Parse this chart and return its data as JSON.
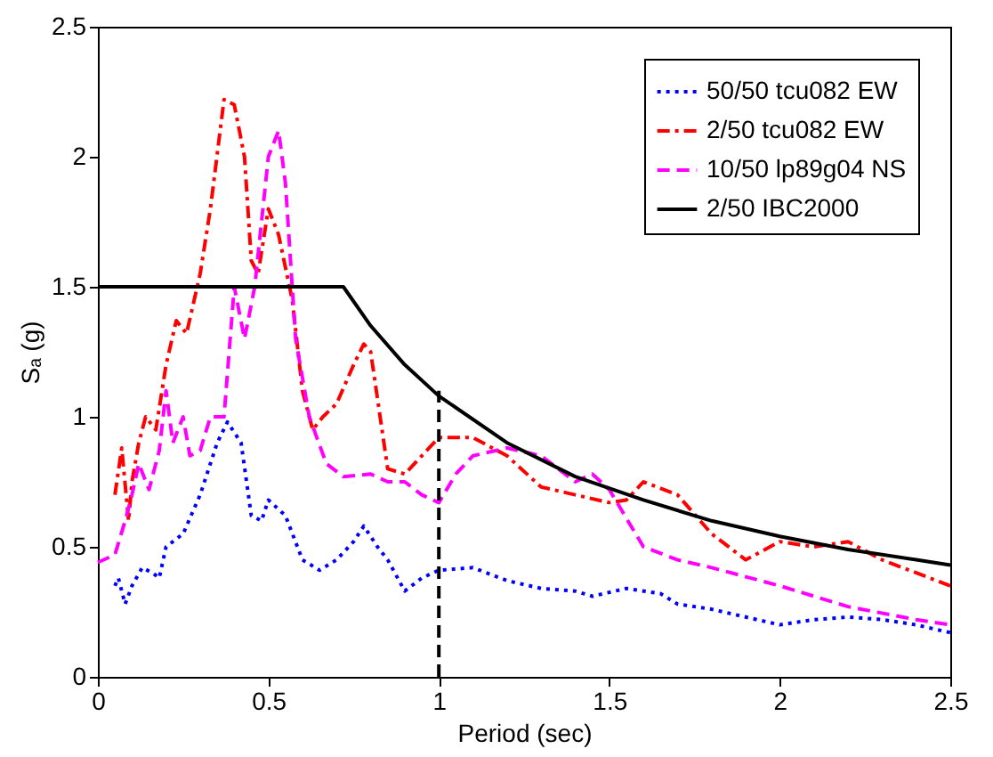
{
  "chart_data": {
    "type": "line",
    "xlabel": "Period (sec)",
    "ylabel": "Sₐ (g)",
    "xlim": [
      0,
      2.5
    ],
    "xticks": [
      0,
      0.5,
      1,
      1.5,
      2,
      2.5
    ],
    "ylim": [
      0,
      2.5
    ],
    "yticks": [
      0,
      0.5,
      1,
      1.5,
      2,
      2.5
    ],
    "grid": false,
    "legend": "top right",
    "series": [
      {
        "name": "50/50 tcu082 EW",
        "color": "#0000ff",
        "line_style": "dotted",
        "x": [
          0.05,
          0.06,
          0.08,
          0.1,
          0.13,
          0.16,
          0.18,
          0.2,
          0.25,
          0.3,
          0.35,
          0.38,
          0.42,
          0.45,
          0.48,
          0.5,
          0.55,
          0.6,
          0.65,
          0.7,
          0.75,
          0.78,
          0.82,
          0.85,
          0.9,
          0.95,
          1.0,
          1.1,
          1.2,
          1.3,
          1.4,
          1.45,
          1.55,
          1.65,
          1.7,
          1.8,
          2.0,
          2.1,
          2.2,
          2.3,
          2.4,
          2.5
        ],
        "values": [
          0.35,
          0.38,
          0.28,
          0.35,
          0.42,
          0.4,
          0.38,
          0.5,
          0.55,
          0.7,
          0.9,
          0.98,
          0.9,
          0.62,
          0.6,
          0.68,
          0.62,
          0.45,
          0.41,
          0.45,
          0.52,
          0.58,
          0.5,
          0.45,
          0.33,
          0.38,
          0.41,
          0.42,
          0.37,
          0.34,
          0.33,
          0.31,
          0.34,
          0.32,
          0.28,
          0.26,
          0.2,
          0.22,
          0.23,
          0.22,
          0.2,
          0.17
        ]
      },
      {
        "name": "2/50 tcu082 EW",
        "color": "#ff0000",
        "line_style": "dashdot",
        "x": [
          0.05,
          0.07,
          0.09,
          0.1,
          0.12,
          0.14,
          0.17,
          0.2,
          0.23,
          0.26,
          0.3,
          0.33,
          0.37,
          0.4,
          0.43,
          0.45,
          0.47,
          0.5,
          0.53,
          0.57,
          0.6,
          0.63,
          0.66,
          0.7,
          0.75,
          0.78,
          0.8,
          0.85,
          0.9,
          0.95,
          1.0,
          1.1,
          1.2,
          1.3,
          1.4,
          1.5,
          1.55,
          1.6,
          1.7,
          1.8,
          1.9,
          2.0,
          2.1,
          2.2,
          2.3,
          2.4,
          2.5
        ],
        "values": [
          0.7,
          0.88,
          0.6,
          0.75,
          0.9,
          1.0,
          0.95,
          1.2,
          1.37,
          1.32,
          1.55,
          1.8,
          2.22,
          2.2,
          2.0,
          1.6,
          1.55,
          1.8,
          1.7,
          1.45,
          1.1,
          0.95,
          1.0,
          1.05,
          1.2,
          1.28,
          1.25,
          0.8,
          0.78,
          0.85,
          0.92,
          0.92,
          0.85,
          0.73,
          0.7,
          0.67,
          0.68,
          0.75,
          0.7,
          0.55,
          0.45,
          0.52,
          0.5,
          0.52,
          0.45,
          0.4,
          0.35
        ]
      },
      {
        "name": "10/50 lp89g04 NS",
        "color": "#ff00ff",
        "line_style": "dashed",
        "x": [
          0,
          0.05,
          0.08,
          0.1,
          0.12,
          0.15,
          0.18,
          0.2,
          0.22,
          0.25,
          0.27,
          0.3,
          0.33,
          0.37,
          0.4,
          0.43,
          0.46,
          0.5,
          0.53,
          0.55,
          0.58,
          0.62,
          0.67,
          0.72,
          0.8,
          0.85,
          0.9,
          0.95,
          1.0,
          1.05,
          1.1,
          1.2,
          1.3,
          1.4,
          1.45,
          1.5,
          1.6,
          1.7,
          1.8,
          2.0,
          2.2,
          2.4,
          2.5
        ],
        "values": [
          0.44,
          0.47,
          0.6,
          0.7,
          0.82,
          0.72,
          0.87,
          1.1,
          0.9,
          1.0,
          0.85,
          0.87,
          1.0,
          1.0,
          1.5,
          1.3,
          1.5,
          2.0,
          2.1,
          1.9,
          1.3,
          1.0,
          0.82,
          0.77,
          0.78,
          0.75,
          0.75,
          0.7,
          0.67,
          0.78,
          0.85,
          0.88,
          0.85,
          0.75,
          0.78,
          0.72,
          0.5,
          0.45,
          0.42,
          0.35,
          0.27,
          0.22,
          0.2
        ]
      },
      {
        "name": "2/50 IBC2000",
        "color": "#000000",
        "line_style": "solid",
        "x": [
          0,
          0.72,
          0.8,
          0.9,
          1.0,
          1.2,
          1.4,
          1.6,
          1.8,
          2.0,
          2.2,
          2.4,
          2.5
        ],
        "values": [
          1.5,
          1.5,
          1.35,
          1.2,
          1.08,
          0.9,
          0.77,
          0.68,
          0.6,
          0.54,
          0.49,
          0.45,
          0.43
        ]
      },
      {
        "color": "#000000",
        "line_style": "dashed",
        "x": [
          1,
          1
        ],
        "values": [
          0,
          1.1
        ]
      }
    ]
  }
}
